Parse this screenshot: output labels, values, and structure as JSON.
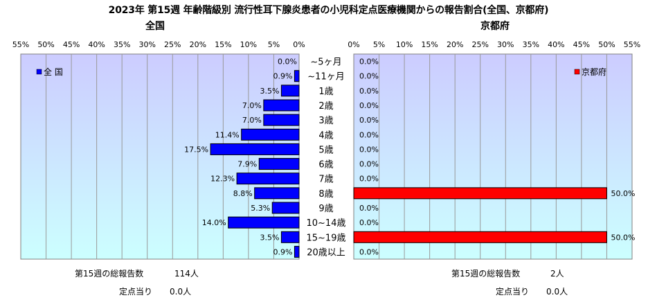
{
  "title": "2023年 第15週 年齢階級別 流行性耳下腺炎患者の小児科定点医療機関からの報告割合(全国、京都府)",
  "colors": {
    "national": "#0000ff",
    "kyoto": "#ff0000",
    "bg_top": "#ccccff",
    "bg_bottom": "#ccffff"
  },
  "chart_data": {
    "type": "bar",
    "categories": [
      "~5ヶ月",
      "~11ヶ月",
      "1歳",
      "2歳",
      "3歳",
      "4歳",
      "5歳",
      "6歳",
      "7歳",
      "8歳",
      "9歳",
      "10~14歳",
      "15~19歳",
      "20歳以上"
    ],
    "axis_ticks": [
      "0%",
      "5%",
      "10%",
      "15%",
      "20%",
      "25%",
      "30%",
      "35%",
      "40%",
      "45%",
      "50%",
      "55%"
    ],
    "xlim": [
      0,
      55
    ],
    "series": [
      {
        "name": "全 国",
        "panel_title": "全国",
        "values": [
          0.0,
          0.9,
          3.5,
          7.0,
          7.0,
          11.4,
          17.5,
          7.9,
          12.3,
          8.8,
          5.3,
          14.0,
          3.5,
          0.9
        ],
        "labels": [
          "0.0%",
          "0.9%",
          "3.5%",
          "7.0%",
          "7.0%",
          "11.4%",
          "17.5%",
          "7.9%",
          "12.3%",
          "8.8%",
          "5.3%",
          "14.0%",
          "3.5%",
          "0.9%"
        ]
      },
      {
        "name": "京都府",
        "panel_title": "京都府",
        "values": [
          0,
          0,
          0,
          0,
          0,
          0,
          0,
          0,
          0,
          50.0,
          0,
          0,
          50.0,
          0
        ],
        "labels": [
          "0.0%",
          "0.0%",
          "0.0%",
          "0.0%",
          "0.0%",
          "0.0%",
          "0.0%",
          "0.0%",
          "0.0%",
          "50.0%",
          "0.0%",
          "0.0%",
          "50.0%",
          "0.0%"
        ]
      }
    ]
  },
  "stats": {
    "national": {
      "total_label": "第15週の総報告数",
      "total_value": "114人",
      "per_label": "定点当り",
      "per_value": "0.0人"
    },
    "kyoto": {
      "total_label": "第15週の総報告数",
      "total_value": "2人",
      "per_label": "定点当り",
      "per_value": "0.0人"
    }
  }
}
